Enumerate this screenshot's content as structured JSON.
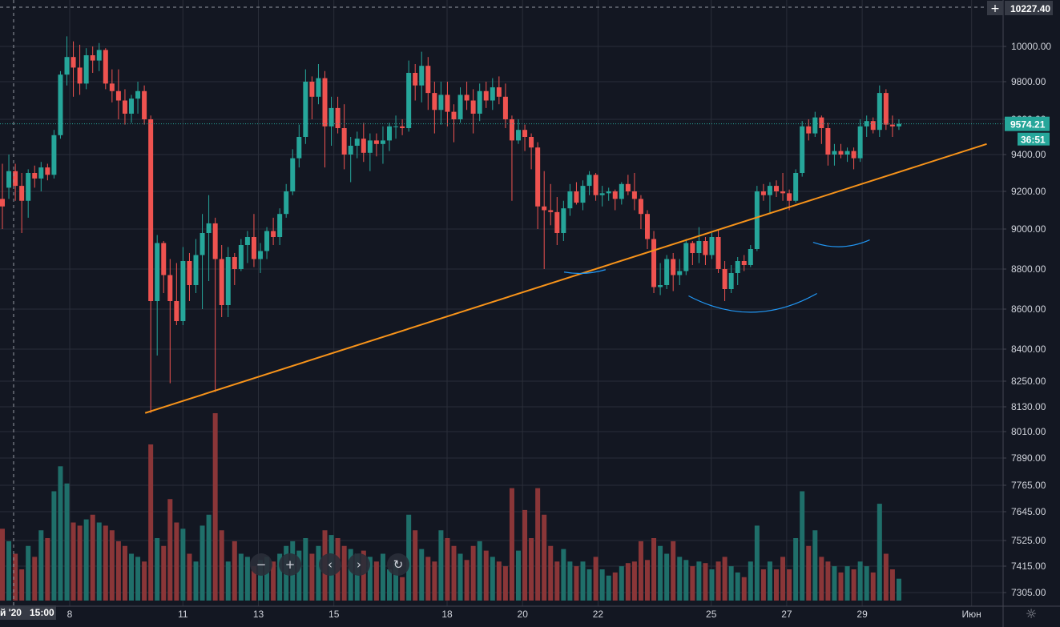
{
  "chart_data": {
    "type": "candlestick",
    "title": "",
    "xlabel": "",
    "ylabel": "",
    "ylim": [
      7240,
      10227.4
    ],
    "y_ticks": [
      "10000.00",
      "9800.00",
      "9600.00",
      "9400.00",
      "9200.00",
      "9000.00",
      "8800.00",
      "8600.00",
      "8400.00",
      "8250.00",
      "8130.00",
      "8010.00",
      "7890.00",
      "7765.00",
      "7645.00",
      "7525.00",
      "7415.00",
      "7305.00"
    ],
    "x_ticks": [
      {
        "label": "8",
        "day": 8
      },
      {
        "label": "11",
        "day": 11
      },
      {
        "label": "13",
        "day": 13
      },
      {
        "label": "15",
        "day": 15
      },
      {
        "label": "18",
        "day": 18
      },
      {
        "label": "20",
        "day": 20
      },
      {
        "label": "22",
        "day": 22
      },
      {
        "label": "25",
        "day": 25
      },
      {
        "label": "27",
        "day": 27
      },
      {
        "label": "29",
        "day": 29
      },
      {
        "label": "Июн",
        "day": 31.9
      }
    ],
    "cursor_time_label": "15:00",
    "cursor_date_label": "й '20",
    "crosshair_price_label": "10227.40",
    "last_price": 9574.21,
    "last_price_label": "9574.21",
    "countdown_label": "36:51",
    "colors": {
      "up": "#26a69a",
      "down": "#ef5350",
      "up_vol": "#1f6f6a",
      "down_vol": "#8a3638",
      "trend": "#f7931a",
      "arc": "#2196f3",
      "grid": "#2a2e39",
      "axis_text": "#d1d4dc"
    },
    "trendline": {
      "from": {
        "day": 10,
        "price": 8100
      },
      "to": {
        "day": 32.3,
        "price": 9460
      }
    },
    "annotations_arcs": [
      {
        "from_day": 21.1,
        "to_day": 22.2,
        "depth": 0.1,
        "center_price": 8780
      },
      {
        "from_day": 24.4,
        "to_day": 27.8,
        "depth": 0.3,
        "center_price": 8620
      },
      {
        "from_day": 27.7,
        "to_day": 29.2,
        "depth": 0.2,
        "center_price": 8920
      }
    ],
    "candles": [
      [
        9160,
        9350,
        9000,
        9120,
        46
      ],
      [
        9220,
        9400,
        9160,
        9310,
        38
      ],
      [
        9310,
        9350,
        9150,
        9230,
        30
      ],
      [
        9230,
        9300,
        8980,
        9150,
        20
      ],
      [
        9150,
        9320,
        9060,
        9300,
        35
      ],
      [
        9300,
        9340,
        9220,
        9270,
        28
      ],
      [
        9270,
        9360,
        9200,
        9330,
        45
      ],
      [
        9330,
        9350,
        9260,
        9290,
        40
      ],
      [
        9290,
        9540,
        9270,
        9510,
        70
      ],
      [
        9510,
        9860,
        9490,
        9840,
        86
      ],
      [
        9840,
        10060,
        9780,
        9940,
        75
      ],
      [
        9940,
        10030,
        9720,
        9880,
        50
      ],
      [
        9880,
        10010,
        9730,
        9790,
        48
      ],
      [
        9790,
        9990,
        9760,
        9950,
        52
      ],
      [
        9950,
        10000,
        9850,
        9920,
        55
      ],
      [
        9920,
        10020,
        9860,
        9980,
        50
      ],
      [
        9980,
        9990,
        9760,
        9790,
        48
      ],
      [
        9790,
        9870,
        9690,
        9750,
        45
      ],
      [
        9750,
        9870,
        9600,
        9700,
        38
      ],
      [
        9700,
        9760,
        9570,
        9630,
        35
      ],
      [
        9630,
        9730,
        9580,
        9710,
        30
      ],
      [
        9710,
        9800,
        9630,
        9750,
        28
      ],
      [
        9750,
        9780,
        9570,
        9600,
        25
      ],
      [
        9600,
        9620,
        8100,
        8640,
        100
      ],
      [
        8640,
        8970,
        8370,
        8930,
        40
      ],
      [
        8930,
        8940,
        8680,
        8770,
        35
      ],
      [
        8770,
        8850,
        8240,
        8640,
        65
      ],
      [
        8640,
        8830,
        8520,
        8540,
        50
      ],
      [
        8540,
        8910,
        8520,
        8840,
        46
      ],
      [
        8840,
        8880,
        8640,
        8720,
        30
      ],
      [
        8720,
        8950,
        8680,
        8870,
        25
      ],
      [
        8870,
        9080,
        8600,
        8980,
        48
      ],
      [
        8980,
        9180,
        8740,
        9030,
        55
      ],
      [
        9030,
        9060,
        8200,
        8850,
        120
      ],
      [
        8850,
        8920,
        8560,
        8620,
        45
      ],
      [
        8620,
        8910,
        8560,
        8860,
        25
      ],
      [
        8860,
        8880,
        8720,
        8800,
        38
      ],
      [
        8800,
        8950,
        8790,
        8920,
        30
      ],
      [
        8920,
        8990,
        8830,
        8960,
        28
      ],
      [
        8960,
        9080,
        8810,
        8850,
        22
      ],
      [
        8850,
        8930,
        8780,
        8890,
        26
      ],
      [
        8890,
        9010,
        8850,
        8990,
        28
      ],
      [
        8990,
        9060,
        8920,
        8960,
        25
      ],
      [
        8960,
        9110,
        8920,
        9080,
        30
      ],
      [
        9080,
        9240,
        9060,
        9200,
        35
      ],
      [
        9200,
        9430,
        9180,
        9380,
        38
      ],
      [
        9380,
        9570,
        9330,
        9500,
        32
      ],
      [
        9500,
        9870,
        9460,
        9800,
        40
      ],
      [
        9800,
        9830,
        9600,
        9720,
        30
      ],
      [
        9720,
        9900,
        9680,
        9820,
        35
      ],
      [
        9820,
        9860,
        9330,
        9560,
        45
      ],
      [
        9560,
        9720,
        9450,
        9660,
        42
      ],
      [
        9660,
        9720,
        9520,
        9550,
        40
      ],
      [
        9550,
        9680,
        9320,
        9400,
        35
      ],
      [
        9400,
        9500,
        9250,
        9450,
        33
      ],
      [
        9450,
        9530,
        9380,
        9490,
        30
      ],
      [
        9490,
        9580,
        9360,
        9410,
        32
      ],
      [
        9410,
        9520,
        9310,
        9480,
        28
      ],
      [
        9480,
        9520,
        9390,
        9460,
        25
      ],
      [
        9460,
        9560,
        9350,
        9480,
        30
      ],
      [
        9480,
        9580,
        9420,
        9560,
        20
      ],
      [
        9560,
        9620,
        9490,
        9560,
        25
      ],
      [
        9560,
        9600,
        9510,
        9550,
        15
      ],
      [
        9550,
        9920,
        9530,
        9850,
        55
      ],
      [
        9850,
        9900,
        9700,
        9780,
        45
      ],
      [
        9780,
        9970,
        9690,
        9890,
        33
      ],
      [
        9890,
        9940,
        9650,
        9740,
        28
      ],
      [
        9740,
        9800,
        9520,
        9650,
        25
      ],
      [
        9650,
        9800,
        9570,
        9730,
        45
      ],
      [
        9730,
        9800,
        9560,
        9640,
        40
      ],
      [
        9640,
        9680,
        9470,
        9600,
        35
      ],
      [
        9600,
        9770,
        9580,
        9730,
        30
      ],
      [
        9730,
        9800,
        9650,
        9700,
        26
      ],
      [
        9700,
        9760,
        9520,
        9630,
        35
      ],
      [
        9630,
        9790,
        9590,
        9750,
        38
      ],
      [
        9750,
        9800,
        9660,
        9700,
        32
      ],
      [
        9700,
        9820,
        9650,
        9770,
        28
      ],
      [
        9770,
        9830,
        9680,
        9720,
        25
      ],
      [
        9720,
        9790,
        9550,
        9600,
        22
      ],
      [
        9600,
        9620,
        9150,
        9480,
        72
      ],
      [
        9480,
        9600,
        9460,
        9540,
        32
      ],
      [
        9540,
        9570,
        9420,
        9500,
        58
      ],
      [
        9500,
        9520,
        9320,
        9440,
        40
      ],
      [
        9440,
        9470,
        9000,
        9120,
        72
      ],
      [
        9120,
        9310,
        8800,
        9100,
        55
      ],
      [
        9100,
        9240,
        9020,
        9090,
        35
      ],
      [
        9090,
        9170,
        8920,
        8980,
        25
      ],
      [
        8980,
        9150,
        8940,
        9110,
        33
      ],
      [
        9110,
        9240,
        9070,
        9200,
        25
      ],
      [
        9200,
        9250,
        9130,
        9140,
        22
      ],
      [
        9140,
        9260,
        9100,
        9230,
        25
      ],
      [
        9230,
        9310,
        9180,
        9290,
        20
      ],
      [
        9290,
        9300,
        9150,
        9180,
        28
      ],
      [
        9180,
        9230,
        9120,
        9190,
        20
      ],
      [
        9190,
        9220,
        9150,
        9200,
        16
      ],
      [
        9200,
        9210,
        9100,
        9160,
        18
      ],
      [
        9160,
        9250,
        9130,
        9240,
        22
      ],
      [
        9240,
        9290,
        9180,
        9200,
        24
      ],
      [
        9200,
        9300,
        9100,
        9160,
        25
      ],
      [
        9160,
        9180,
        9000,
        9080,
        38
      ],
      [
        9080,
        9100,
        8900,
        8950,
        26
      ],
      [
        8950,
        8990,
        8680,
        8710,
        40
      ],
      [
        8710,
        8830,
        8670,
        8720,
        35
      ],
      [
        8720,
        8870,
        8700,
        8850,
        30
      ],
      [
        8850,
        8880,
        8690,
        8770,
        38
      ],
      [
        8770,
        8850,
        8720,
        8790,
        28
      ],
      [
        8790,
        8950,
        8770,
        8930,
        26
      ],
      [
        8930,
        8940,
        8820,
        8880,
        22
      ],
      [
        8880,
        9010,
        8830,
        8940,
        25
      ],
      [
        8940,
        8960,
        8820,
        8870,
        24
      ],
      [
        8870,
        8980,
        8850,
        8960,
        20
      ],
      [
        8960,
        9000,
        8780,
        8800,
        25
      ],
      [
        8800,
        8840,
        8640,
        8700,
        28
      ],
      [
        8700,
        8820,
        8680,
        8780,
        22
      ],
      [
        8780,
        8860,
        8720,
        8840,
        18
      ],
      [
        8840,
        8870,
        8790,
        8820,
        15
      ],
      [
        8820,
        8920,
        8810,
        8900,
        25
      ],
      [
        8900,
        9230,
        8890,
        9200,
        48
      ],
      [
        9200,
        9240,
        9150,
        9180,
        20
      ],
      [
        9180,
        9250,
        9080,
        9230,
        25
      ],
      [
        9230,
        9260,
        9170,
        9200,
        20
      ],
      [
        9200,
        9300,
        9150,
        9190,
        28
      ],
      [
        9190,
        9210,
        9100,
        9150,
        20
      ],
      [
        9150,
        9320,
        9140,
        9300,
        40
      ],
      [
        9300,
        9590,
        9280,
        9560,
        70
      ],
      [
        9560,
        9600,
        9480,
        9520,
        35
      ],
      [
        9520,
        9640,
        9500,
        9610,
        45
      ],
      [
        9610,
        9620,
        9460,
        9550,
        28
      ],
      [
        9550,
        9580,
        9340,
        9400,
        25
      ],
      [
        9400,
        9460,
        9340,
        9420,
        22
      ],
      [
        9420,
        9460,
        9380,
        9400,
        18
      ],
      [
        9400,
        9440,
        9360,
        9420,
        22
      ],
      [
        9420,
        9440,
        9320,
        9380,
        20
      ],
      [
        9380,
        9600,
        9360,
        9560,
        25
      ],
      [
        9560,
        9620,
        9500,
        9590,
        22
      ],
      [
        9590,
        9610,
        9520,
        9540,
        18
      ],
      [
        9540,
        9780,
        9500,
        9740,
        62
      ],
      [
        9740,
        9760,
        9540,
        9570,
        30
      ],
      [
        9570,
        9620,
        9500,
        9560,
        20
      ],
      [
        9560,
        9600,
        9540,
        9574.21,
        14
      ]
    ]
  },
  "toolbar": {
    "zoom_out_icon": "minus-icon",
    "zoom_in_icon": "plus-icon",
    "scroll_left_icon": "chevron-left-icon",
    "scroll_right_icon": "chevron-right-icon",
    "reset_icon": "reset-icon",
    "settings_icon": "gear-icon"
  }
}
